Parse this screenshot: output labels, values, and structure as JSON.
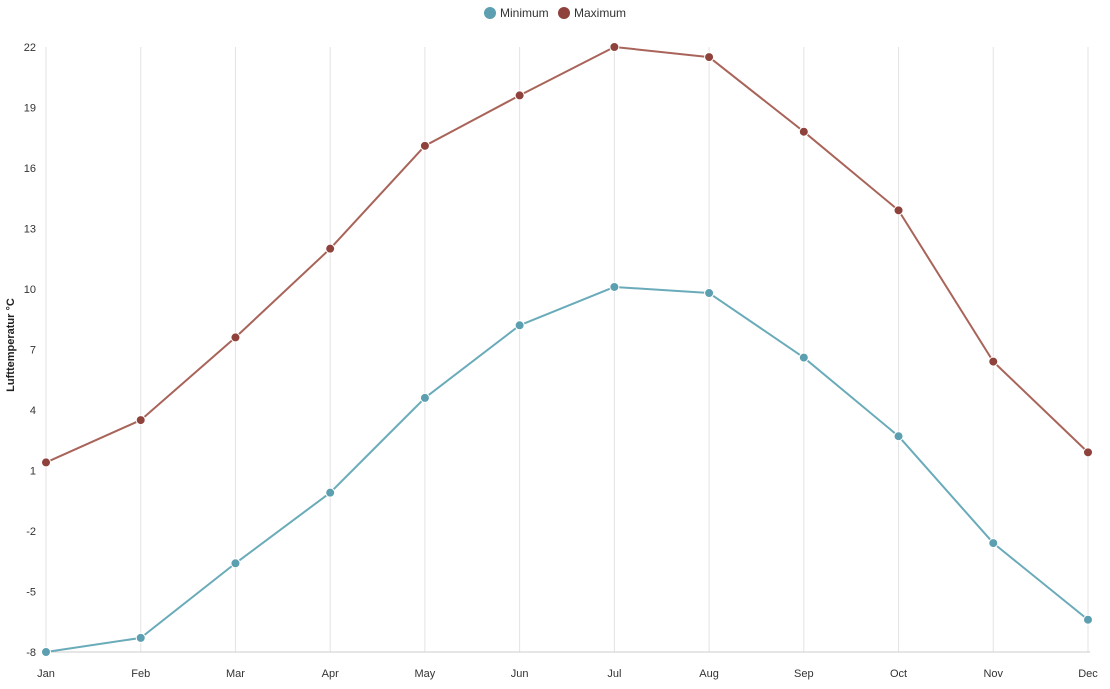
{
  "chart_data": {
    "type": "line",
    "categories": [
      "Jan",
      "Feb",
      "Mar",
      "Apr",
      "May",
      "Jun",
      "Jul",
      "Aug",
      "Sep",
      "Oct",
      "Nov",
      "Dec"
    ],
    "series": [
      {
        "name": "Minimum",
        "color": "#6aabba",
        "marker_color": "#5c9fb0",
        "values": [
          -8.0,
          -7.3,
          -3.6,
          -0.1,
          4.6,
          8.2,
          10.1,
          9.8,
          6.6,
          2.7,
          -2.6,
          -6.4
        ]
      },
      {
        "name": "Maximum",
        "color": "#a9645a",
        "marker_color": "#8f423c",
        "values": [
          1.4,
          3.5,
          7.6,
          12.0,
          17.1,
          19.6,
          22.0,
          21.5,
          17.8,
          13.9,
          6.4,
          1.9
        ]
      }
    ],
    "title": "",
    "xlabel": "",
    "ylabel": "Lufttemperatur °C",
    "ylim": [
      -8,
      22
    ],
    "yticks": [
      -8,
      -5,
      -2,
      1,
      4,
      7,
      10,
      13,
      16,
      19,
      22
    ],
    "grid": "vertical",
    "legend_position": "top-center"
  }
}
